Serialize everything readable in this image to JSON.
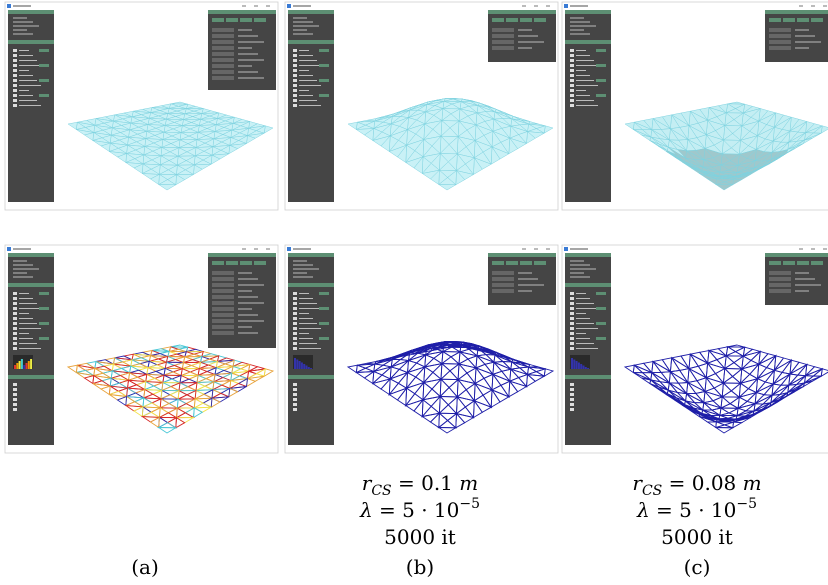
{
  "figure": {
    "panels": [
      {
        "label": "(a)"
      },
      {
        "label": "(b)",
        "radius": {
          "symbol": "r",
          "subscript": "CS",
          "value": " = 0.1 ",
          "unit": "m"
        },
        "lambda": {
          "symbol": "λ",
          "value": " = 5 · 10",
          "exponent": "−5"
        },
        "iterations": "5000 it"
      },
      {
        "label": "(c)",
        "radius": {
          "symbol": "r",
          "subscript": "CS",
          "value": " = 0.08 ",
          "unit": "m"
        },
        "lambda": {
          "symbol": "λ",
          "value": " = 5 · 10",
          "exponent": "−5"
        },
        "iterations": "5000 it"
      }
    ]
  }
}
